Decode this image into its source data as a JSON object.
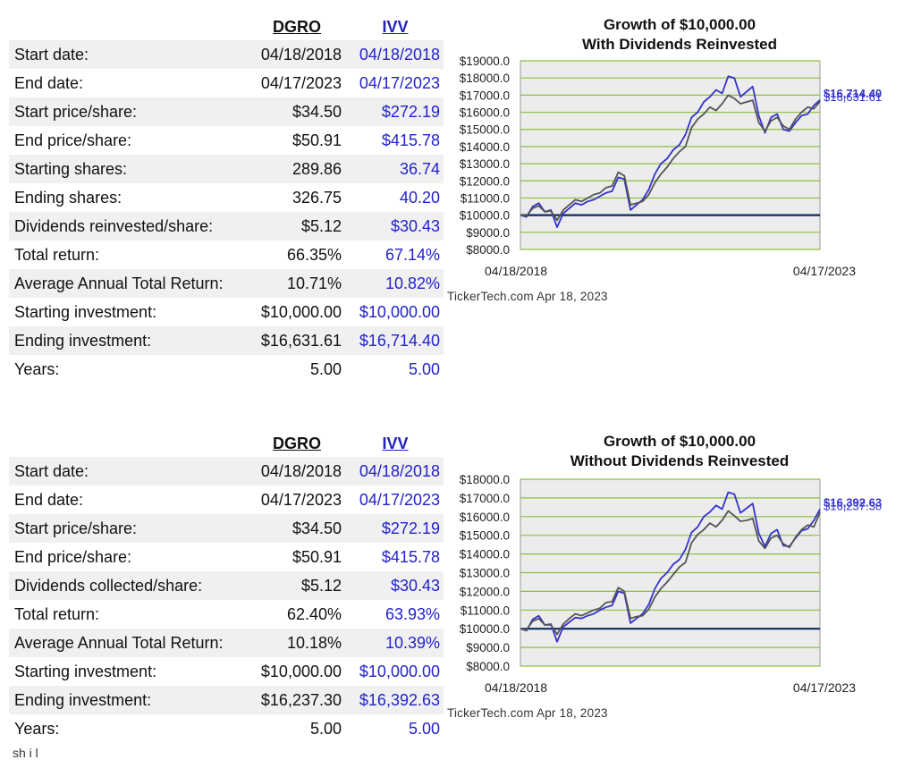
{
  "sections": [
    {
      "headers": {
        "dgro": "DGRO",
        "ivv": "IVV"
      },
      "rows": [
        {
          "label": "Start date:",
          "dgro": "04/18/2018",
          "ivv": "04/18/2018"
        },
        {
          "label": "End date:",
          "dgro": "04/17/2023",
          "ivv": "04/17/2023"
        },
        {
          "label": "Start price/share:",
          "dgro": "$34.50",
          "ivv": "$272.19"
        },
        {
          "label": "End price/share:",
          "dgro": "$50.91",
          "ivv": "$415.78"
        },
        {
          "label": "Starting shares:",
          "dgro": "289.86",
          "ivv": "36.74"
        },
        {
          "label": "Ending shares:",
          "dgro": "326.75",
          "ivv": "40.20"
        },
        {
          "label": "Dividends reinvested/share:",
          "dgro": "$5.12",
          "ivv": "$30.43"
        },
        {
          "label": "Total return:",
          "dgro": "66.35%",
          "ivv": "67.14%"
        },
        {
          "label": "Average Annual Total Return:",
          "dgro": "10.71%",
          "ivv": "10.82%"
        },
        {
          "label": "Starting investment:",
          "dgro": "$10,000.00",
          "ivv": "$10,000.00"
        },
        {
          "label": "Ending investment:",
          "dgro": "$16,631.61",
          "ivv": "$16,714.40"
        },
        {
          "label": "Years:",
          "dgro": "5.00",
          "ivv": "5.00"
        }
      ],
      "chart": {
        "title_line1": "Growth of $10,000.00",
        "title_line2": "With Dividends Reinvested",
        "watermark": "TickerTech.com  Apr 18, 2023",
        "x_start_label": "04/18/2018",
        "x_end_label": "04/17/2023",
        "end_label_ivv": "$16,714.40",
        "end_label_dgro": "$16,631.61"
      }
    },
    {
      "headers": {
        "dgro": "DGRO",
        "ivv": "IVV"
      },
      "rows": [
        {
          "label": "Start date:",
          "dgro": "04/18/2018",
          "ivv": "04/18/2018"
        },
        {
          "label": "End date:",
          "dgro": "04/17/2023",
          "ivv": "04/17/2023"
        },
        {
          "label": "Start price/share:",
          "dgro": "$34.50",
          "ivv": "$272.19"
        },
        {
          "label": "End price/share:",
          "dgro": "$50.91",
          "ivv": "$415.78"
        },
        {
          "label": "Dividends collected/share:",
          "dgro": "$5.12",
          "ivv": "$30.43"
        },
        {
          "label": "Total return:",
          "dgro": "62.40%",
          "ivv": "63.93%"
        },
        {
          "label": "Average Annual Total Return:",
          "dgro": "10.18%",
          "ivv": "10.39%"
        },
        {
          "label": "Starting investment:",
          "dgro": "$10,000.00",
          "ivv": "$10,000.00"
        },
        {
          "label": "Ending investment:",
          "dgro": "$16,237.30",
          "ivv": "$16,392.63"
        },
        {
          "label": "Years:",
          "dgro": "5.00",
          "ivv": "5.00"
        }
      ],
      "chart": {
        "title_line1": "Growth of $10,000.00",
        "title_line2": "Without Dividends Reinvested",
        "watermark": "TickerTech.com  Apr 18, 2023",
        "x_start_label": "04/18/2018",
        "x_end_label": "04/17/2023",
        "end_label_ivv": "$16,392.63",
        "end_label_dgro": "$16,237.30"
      }
    }
  ],
  "footer_fragment": "sh             i    l   ",
  "colors": {
    "ivv_line": "#3333cc",
    "dgro_line": "#555555",
    "baseline": "#0a2a5e",
    "grid": "#8cbf3f",
    "plot_bg": "#ececec"
  },
  "chart_data": [
    {
      "type": "line",
      "title": "Growth of $10,000.00 With Dividends Reinvested",
      "xlabel": "",
      "ylabel": "",
      "x_range": [
        "04/18/2018",
        "04/17/2023"
      ],
      "ylim": [
        8000,
        19000
      ],
      "yticks": [
        8000,
        9000,
        10000,
        11000,
        12000,
        13000,
        14000,
        15000,
        16000,
        17000,
        18000,
        19000
      ],
      "ytick_labels": [
        "$8000.0",
        "$9000.0",
        "$10000.0",
        "$11000.0",
        "$12000.0",
        "$13000.0",
        "$14000.0",
        "$15000.0",
        "$16000.0",
        "$17000.0",
        "$18000.0",
        "$19000.0"
      ],
      "baseline": 10000,
      "grid": true,
      "series": [
        {
          "name": "IVV",
          "values": [
            10000,
            9900,
            10500,
            10700,
            10200,
            10300,
            9300,
            10100,
            10400,
            10700,
            10600,
            10800,
            10900,
            11100,
            11300,
            11400,
            12200,
            12100,
            10300,
            10600,
            10900,
            11500,
            12400,
            13000,
            13300,
            13800,
            14100,
            14700,
            15700,
            16000,
            16600,
            16900,
            17300,
            17100,
            18100,
            18000,
            16900,
            17200,
            17500,
            15800,
            14800,
            15700,
            15900,
            15000,
            14900,
            15400,
            15800,
            15900,
            16400,
            16714
          ]
        },
        {
          "name": "DGRO",
          "values": [
            10000,
            9950,
            10400,
            10550,
            10200,
            10250,
            9700,
            10300,
            10600,
            10900,
            10800,
            11000,
            11200,
            11300,
            11600,
            11700,
            12500,
            12300,
            10600,
            10700,
            10800,
            11200,
            11900,
            12400,
            12800,
            13300,
            13700,
            14000,
            15100,
            15600,
            15900,
            16300,
            16100,
            16500,
            17000,
            16800,
            16500,
            16600,
            16700,
            15400,
            14900,
            15500,
            15700,
            15200,
            15000,
            15600,
            16000,
            16300,
            16200,
            16632
          ]
        }
      ]
    },
    {
      "type": "line",
      "title": "Growth of $10,000.00 Without Dividends Reinvested",
      "xlabel": "",
      "ylabel": "",
      "x_range": [
        "04/18/2018",
        "04/17/2023"
      ],
      "ylim": [
        8000,
        18000
      ],
      "yticks": [
        8000,
        9000,
        10000,
        11000,
        12000,
        13000,
        14000,
        15000,
        16000,
        17000,
        18000
      ],
      "ytick_labels": [
        "$8000.0",
        "$9000.0",
        "$10000.0",
        "$11000.0",
        "$12000.0",
        "$13000.0",
        "$14000.0",
        "$15000.0",
        "$16000.0",
        "$17000.0",
        "$18000.0"
      ],
      "baseline": 10000,
      "grid": true,
      "series": [
        {
          "name": "IVV",
          "values": [
            10000,
            9900,
            10500,
            10700,
            10200,
            10250,
            9300,
            10100,
            10350,
            10600,
            10550,
            10700,
            10800,
            11000,
            11150,
            11250,
            12000,
            11900,
            10300,
            10550,
            10800,
            11300,
            12150,
            12700,
            13000,
            13450,
            13700,
            14250,
            15150,
            15450,
            16000,
            16250,
            16600,
            16400,
            17300,
            17200,
            16200,
            16450,
            16700,
            15100,
            14400,
            15100,
            15300,
            14450,
            14400,
            14850,
            15250,
            15350,
            15800,
            16393
          ]
        },
        {
          "name": "DGRO",
          "values": [
            10000,
            9950,
            10400,
            10550,
            10200,
            10200,
            9700,
            10250,
            10550,
            10800,
            10700,
            10850,
            11000,
            11100,
            11400,
            11450,
            12200,
            12000,
            10550,
            10650,
            10700,
            11050,
            11700,
            12150,
            12500,
            12900,
            13300,
            13550,
            14600,
            15050,
            15300,
            15650,
            15450,
            15800,
            16300,
            16050,
            15750,
            15800,
            15900,
            14700,
            14300,
            14850,
            15000,
            14550,
            14350,
            14900,
            15300,
            15550,
            15450,
            16237
          ]
        }
      ]
    }
  ]
}
